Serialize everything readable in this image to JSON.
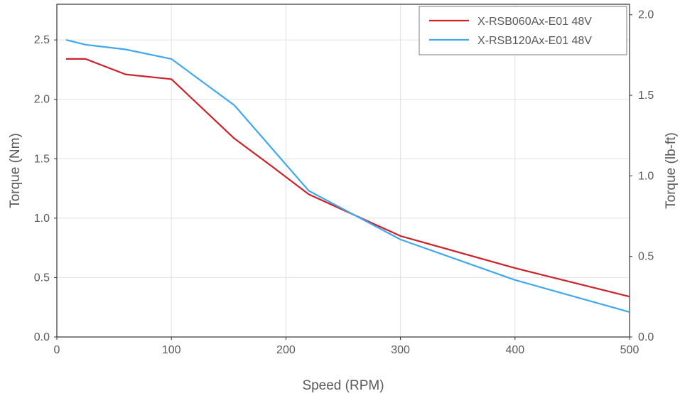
{
  "chart_data": {
    "type": "line",
    "xlabel": "Speed (RPM)",
    "ylabel": "Torque (Nm)",
    "y2label": "Torque (lb-ft)",
    "xlim": [
      0,
      500
    ],
    "ylim": [
      0,
      2.8
    ],
    "y2lim": [
      0,
      2.065
    ],
    "x_ticks": [
      0,
      100,
      200,
      300,
      400,
      500
    ],
    "y_ticks": [
      0.0,
      0.5,
      1.0,
      1.5,
      2.0,
      2.5
    ],
    "y2_ticks": [
      0.0,
      0.5,
      1.0,
      1.5,
      2.0
    ],
    "x_tick_labels": [
      "0",
      "100",
      "200",
      "300",
      "400",
      "500"
    ],
    "y_tick_labels": [
      "0.0",
      "0.5",
      "1.0",
      "1.5",
      "2.0",
      "2.5"
    ],
    "y2_tick_labels": [
      "0.0",
      "0.5",
      "1.0",
      "1.5",
      "2.0"
    ],
    "grid": true,
    "legend_position": "top-right",
    "series": [
      {
        "name": "X-RSB060Ax-E01 48V",
        "color": "#cc2229",
        "x": [
          8,
          25,
          60,
          100,
          155,
          190,
          220,
          300,
          400,
          500
        ],
        "y": [
          2.34,
          2.34,
          2.21,
          2.17,
          1.67,
          1.42,
          1.2,
          0.85,
          0.58,
          0.34
        ]
      },
      {
        "name": "X-RSB120Ax-E01 48V",
        "color": "#3fa8f0",
        "x": [
          8,
          25,
          60,
          100,
          155,
          220,
          300,
          400,
          500
        ],
        "y": [
          2.5,
          2.46,
          2.42,
          2.34,
          1.95,
          1.23,
          0.82,
          0.48,
          0.21
        ]
      }
    ]
  }
}
